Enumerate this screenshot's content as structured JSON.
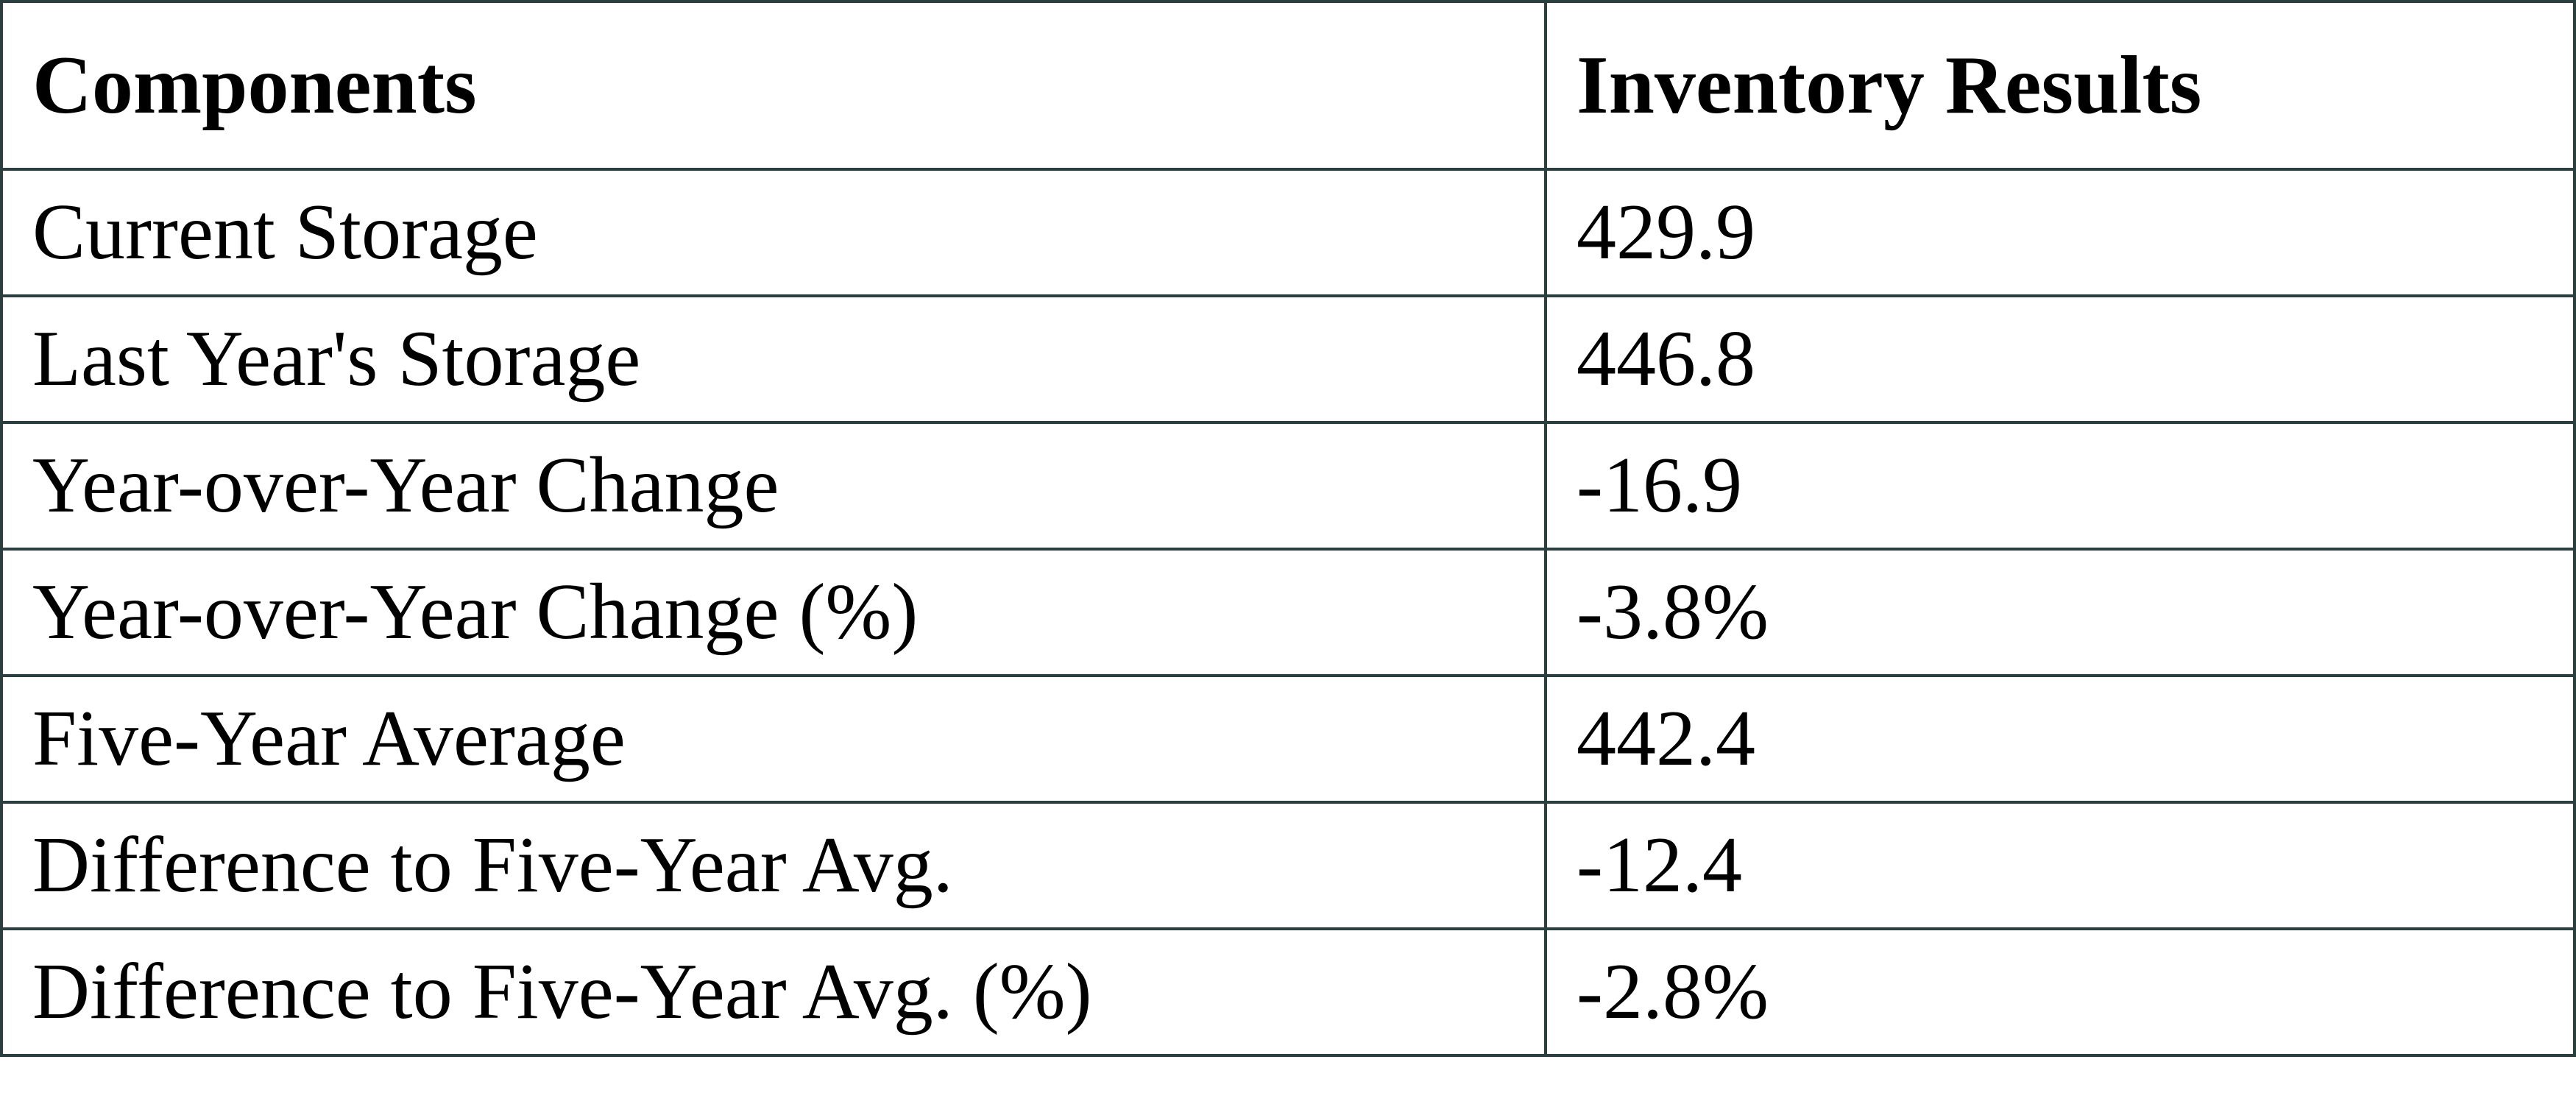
{
  "table": {
    "header": [
      "Components",
      "Inventory Results"
    ],
    "rows": [
      [
        "Current Storage",
        "429.9"
      ],
      [
        "Last Year's Storage",
        "446.8"
      ],
      [
        "Year-over-Year Change",
        "-16.9"
      ],
      [
        "Year-over-Year Change (%)",
        "-3.8%"
      ],
      [
        "Five-Year Average",
        "442.4"
      ],
      [
        "Difference to Five-Year Avg.",
        "-12.4"
      ],
      [
        "Difference to Five-Year Avg. (%)",
        "-2.8%"
      ]
    ]
  }
}
